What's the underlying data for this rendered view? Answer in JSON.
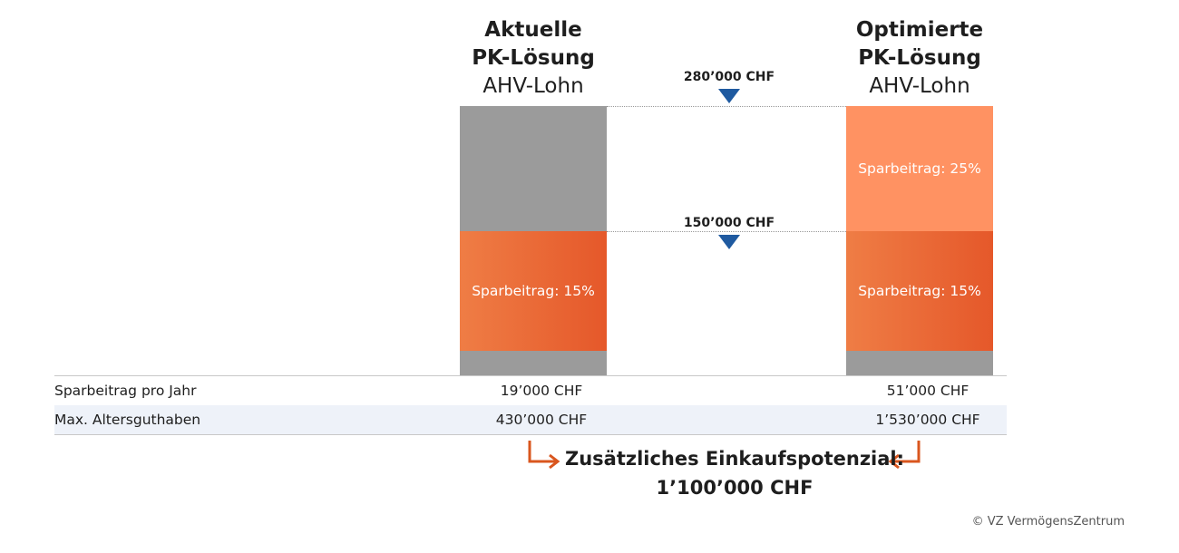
{
  "columns": [
    {
      "title_line1": "Aktuelle",
      "title_line2": "PK-Lösung",
      "subtitle": "AHV-Lohn"
    },
    {
      "title_line1": "Optimierte",
      "title_line2": "PK-Lösung",
      "subtitle": "AHV-Lohn"
    }
  ],
  "markers": [
    {
      "label": "280’000 CHF",
      "value": 280000
    },
    {
      "label": "150’000 CHF",
      "value": 150000
    }
  ],
  "table": {
    "rows": [
      {
        "label": "Sparbeitrag pro Jahr",
        "current": "19’000 CHF",
        "optimized": "51’000 CHF"
      },
      {
        "label": "Max. Altersguthaben",
        "current": "430’000 CHF",
        "optimized": "1’530’000 CHF"
      }
    ]
  },
  "result": {
    "line1": "Zusätzliches Einkaufspotenzial:",
    "line2": "1’100’000 CHF"
  },
  "copyright": "© VZ VermögensZentrum",
  "colors": {
    "gray": "#9b9b9b",
    "orange_dark_start": "#ef7d45",
    "orange_dark_end": "#e5582a",
    "orange_light": "#ff9262",
    "marker_blue": "#1f5aa0",
    "arrow_orange": "#d9561e"
  },
  "chart_data": {
    "type": "bar",
    "categories": [
      "Aktuelle PK-Lösung",
      "Optimierte PK-Lösung"
    ],
    "ylim": [
      0,
      280000
    ],
    "segments": [
      [
        {
          "from": 0,
          "to": 25000,
          "color": "gray",
          "label": ""
        },
        {
          "from": 25000,
          "to": 150000,
          "color": "orange_dark",
          "label": "Sparbeitrag: 15%"
        },
        {
          "from": 150000,
          "to": 280000,
          "color": "gray",
          "label": ""
        }
      ],
      [
        {
          "from": 0,
          "to": 25000,
          "color": "gray",
          "label": ""
        },
        {
          "from": 25000,
          "to": 150000,
          "color": "orange_dark",
          "label": "Sparbeitrag: 15%"
        },
        {
          "from": 150000,
          "to": 280000,
          "color": "orange_light",
          "label": "Sparbeitrag: 25%"
        }
      ]
    ]
  }
}
